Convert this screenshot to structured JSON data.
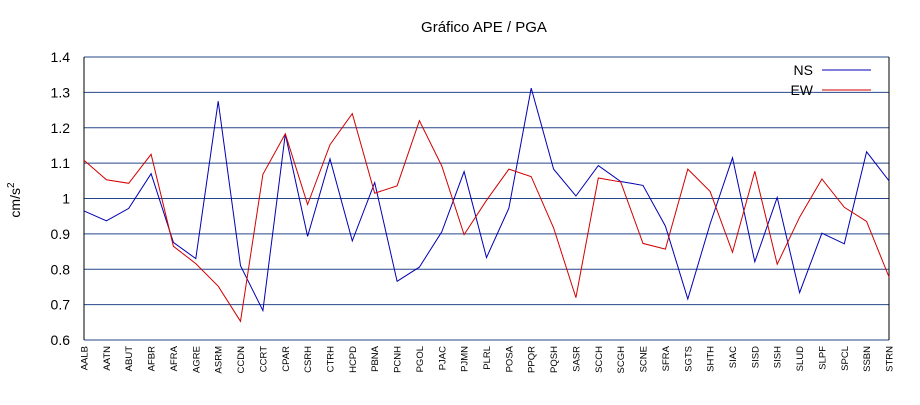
{
  "chart_data": {
    "type": "line",
    "title": "Gráfico  APE / PGA",
    "xlabel": "",
    "ylabel": "cm/s",
    "ylabel_superscript": "2",
    "ylim": [
      0.6,
      1.4
    ],
    "yticks": [
      "0.6",
      "0.7",
      "0.8",
      "0.9",
      "1",
      "1.1",
      "1.2",
      "1.3",
      "1.4"
    ],
    "grid": "horizontal",
    "legend_position": "top-right",
    "categories": [
      "AALB",
      "AATN",
      "ABUT",
      "AFBR",
      "AFRA",
      "AGRE",
      "ASRM",
      "CCDN",
      "CCRT",
      "CPAR",
      "CSRH",
      "CTRH",
      "HCPD",
      "PBNA",
      "PCNH",
      "PGOL",
      "PJAC",
      "PJMN",
      "PLRL",
      "POSA",
      "PPQR",
      "PQSH",
      "SASR",
      "SCCH",
      "SCGH",
      "SCNE",
      "SFRA",
      "SGTS",
      "SHTH",
      "SIAC",
      "SISD",
      "SISH",
      "SLUD",
      "SLPF",
      "SPCL",
      "SSBN",
      "STRN"
    ],
    "series": [
      {
        "name": "NS",
        "color": "#0000b4",
        "values": [
          0.965,
          0.937,
          0.972,
          1.07,
          0.876,
          0.83,
          1.275,
          0.81,
          0.683,
          1.182,
          0.893,
          1.112,
          0.88,
          1.045,
          0.766,
          0.806,
          0.906,
          1.076,
          0.833,
          0.973,
          1.312,
          1.083,
          1.007,
          1.093,
          1.048,
          1.037,
          0.922,
          0.716,
          0.928,
          1.115,
          0.821,
          1.003,
          0.734,
          0.902,
          0.872,
          1.132,
          1.05
        ]
      },
      {
        "name": "EW",
        "color": "#d20000",
        "values": [
          1.108,
          1.053,
          1.043,
          1.125,
          0.865,
          0.816,
          0.752,
          0.653,
          1.068,
          1.183,
          0.983,
          1.152,
          1.24,
          1.015,
          1.036,
          1.22,
          1.092,
          0.898,
          0.995,
          1.083,
          1.062,
          0.917,
          0.72,
          1.058,
          1.047,
          0.873,
          0.857,
          1.083,
          1.02,
          0.848,
          1.077,
          0.814,
          0.947,
          1.055,
          0.975,
          0.935,
          0.778
        ]
      }
    ]
  }
}
